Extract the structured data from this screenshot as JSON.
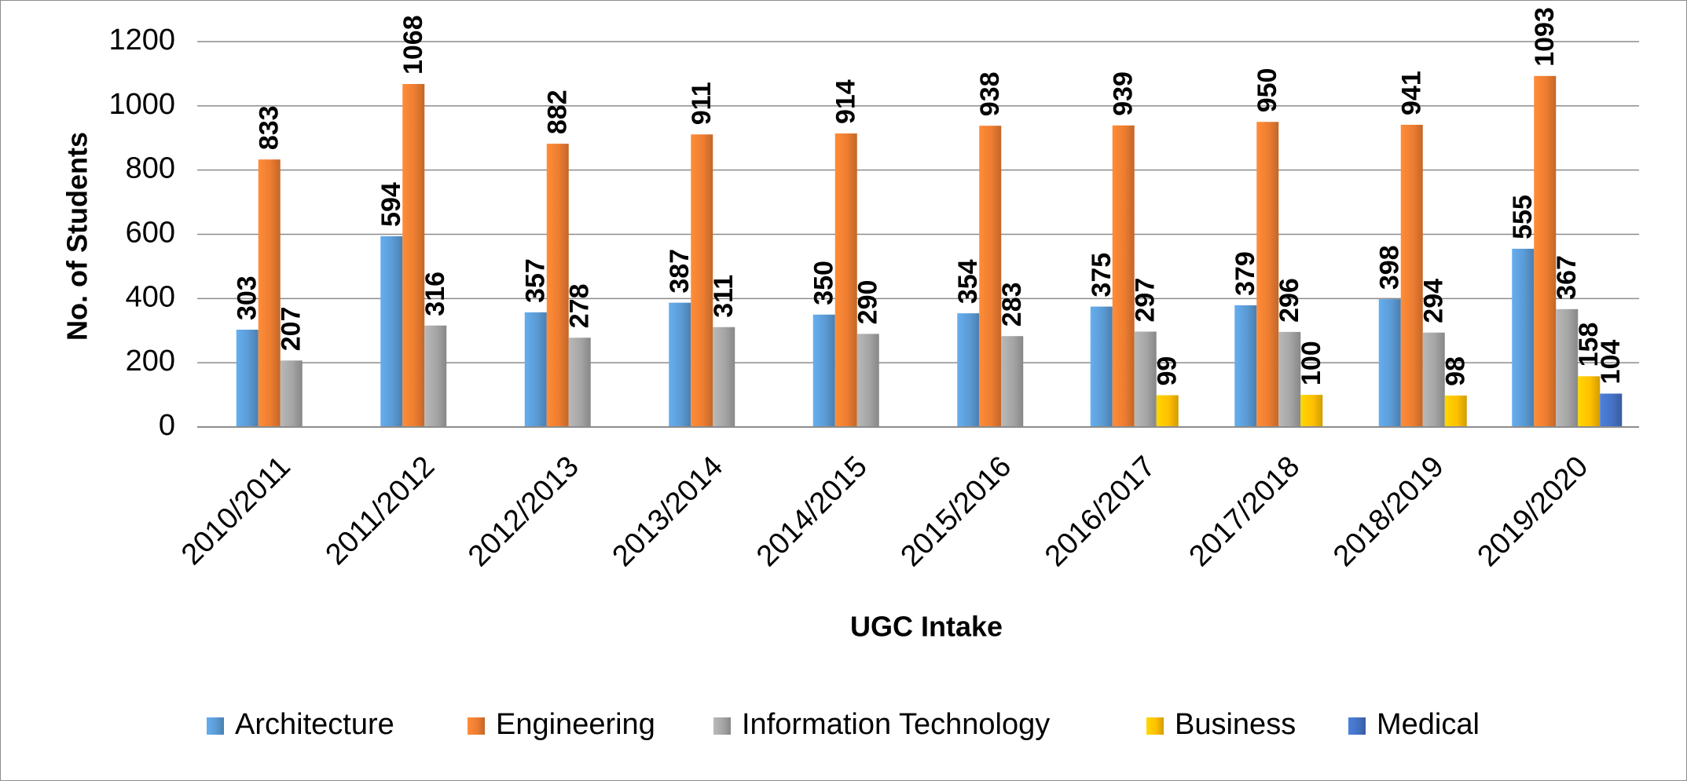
{
  "chart_data": {
    "type": "bar",
    "title": "",
    "xlabel": "UGC Intake",
    "ylabel": "No. of Students",
    "ylim": [
      0,
      1200
    ],
    "yticks": [
      0,
      200,
      400,
      600,
      800,
      1000,
      1200
    ],
    "grid": true,
    "legend_position": "bottom",
    "categories": [
      "2010/2011",
      "2011/2012",
      "2012/2013",
      "2013/2014",
      "2014/2015",
      "2015/2016",
      "2016/2017",
      "2017/2018",
      "2018/2019",
      "2019/2020"
    ],
    "series": [
      {
        "name": "Architecture",
        "color": "#5b9bd5",
        "values": [
          303,
          594,
          357,
          387,
          350,
          354,
          375,
          379,
          398,
          555
        ]
      },
      {
        "name": "Engineering",
        "color": "#ed7d31",
        "values": [
          833,
          1068,
          882,
          911,
          914,
          938,
          939,
          950,
          941,
          1093
        ]
      },
      {
        "name": "Information Technology",
        "color": "#a5a5a5",
        "values": [
          207,
          316,
          278,
          311,
          290,
          283,
          297,
          296,
          294,
          367
        ]
      },
      {
        "name": "Business",
        "color": "#ffc000",
        "values": [
          null,
          null,
          null,
          null,
          null,
          null,
          99,
          100,
          98,
          158
        ]
      },
      {
        "name": "Medical",
        "color": "#4472c4",
        "values": [
          null,
          null,
          null,
          null,
          null,
          null,
          null,
          null,
          null,
          104
        ]
      }
    ]
  }
}
